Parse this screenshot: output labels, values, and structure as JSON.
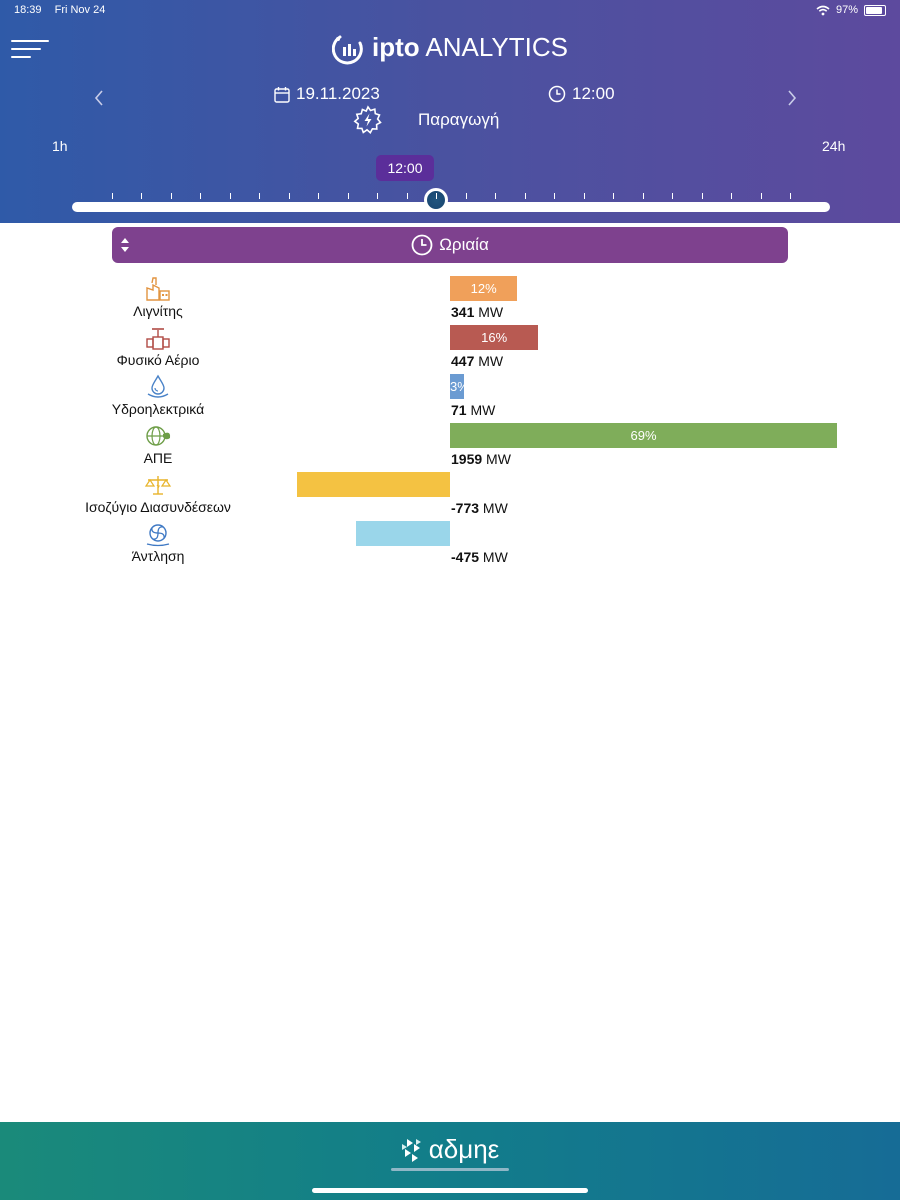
{
  "statusbar": {
    "time": "18:39",
    "date": "Fri Nov 24",
    "battery": "97%"
  },
  "app": {
    "title_bold": "ipto",
    "title_rest": " ANALYTICS"
  },
  "nav": {
    "prev_icon": "chevron-left-icon",
    "next_icon": "chevron-right-icon",
    "date": "19.11.2023",
    "time": "12:00",
    "section": "Παραγωγή"
  },
  "slider": {
    "min_label": "1h",
    "max_label": "24h",
    "current_label": "12:00",
    "min": 1,
    "max": 24,
    "value": 12
  },
  "mode": {
    "label": "Ωριαία"
  },
  "rows": [
    {
      "name": "Λιγνίτης",
      "icon": "power-plant-icon",
      "value": "341",
      "unit": "MW",
      "percent": "12%",
      "mw": 341,
      "color": "#f0a05a",
      "icon_color": "#e29440"
    },
    {
      "name": "Φυσικό Αέριο",
      "icon": "gas-valve-icon",
      "value": "447",
      "unit": "MW",
      "percent": "16%",
      "mw": 447,
      "color": "#b85a52",
      "icon_color": "#b14b45"
    },
    {
      "name": "Υδροηλεκτρικά",
      "icon": "water-drop-icon",
      "value": "71",
      "unit": "MW",
      "percent": "3%",
      "mw": 71,
      "color": "#6b9bd2",
      "icon_color": "#4a83c8"
    },
    {
      "name": "ΑΠΕ",
      "icon": "green-globe-icon",
      "value": "1959",
      "unit": "MW",
      "percent": "69%",
      "mw": 1959,
      "color": "#7fad5a",
      "icon_color": "#6e9e48"
    },
    {
      "name": "Ισοζύγιο Διασυνδέσεων",
      "icon": "balance-scale-icon",
      "value": "-773",
      "unit": "MW",
      "percent": "",
      "mw": -773,
      "color": "#f4c242",
      "icon_color": "#e8b42a"
    },
    {
      "name": "Άντληση",
      "icon": "pump-icon",
      "value": "-475",
      "unit": "MW",
      "percent": "",
      "mw": -475,
      "color": "#9ad6ea",
      "icon_color": "#3f79c4"
    }
  ],
  "footer": {
    "brand": "αδμηε"
  }
}
